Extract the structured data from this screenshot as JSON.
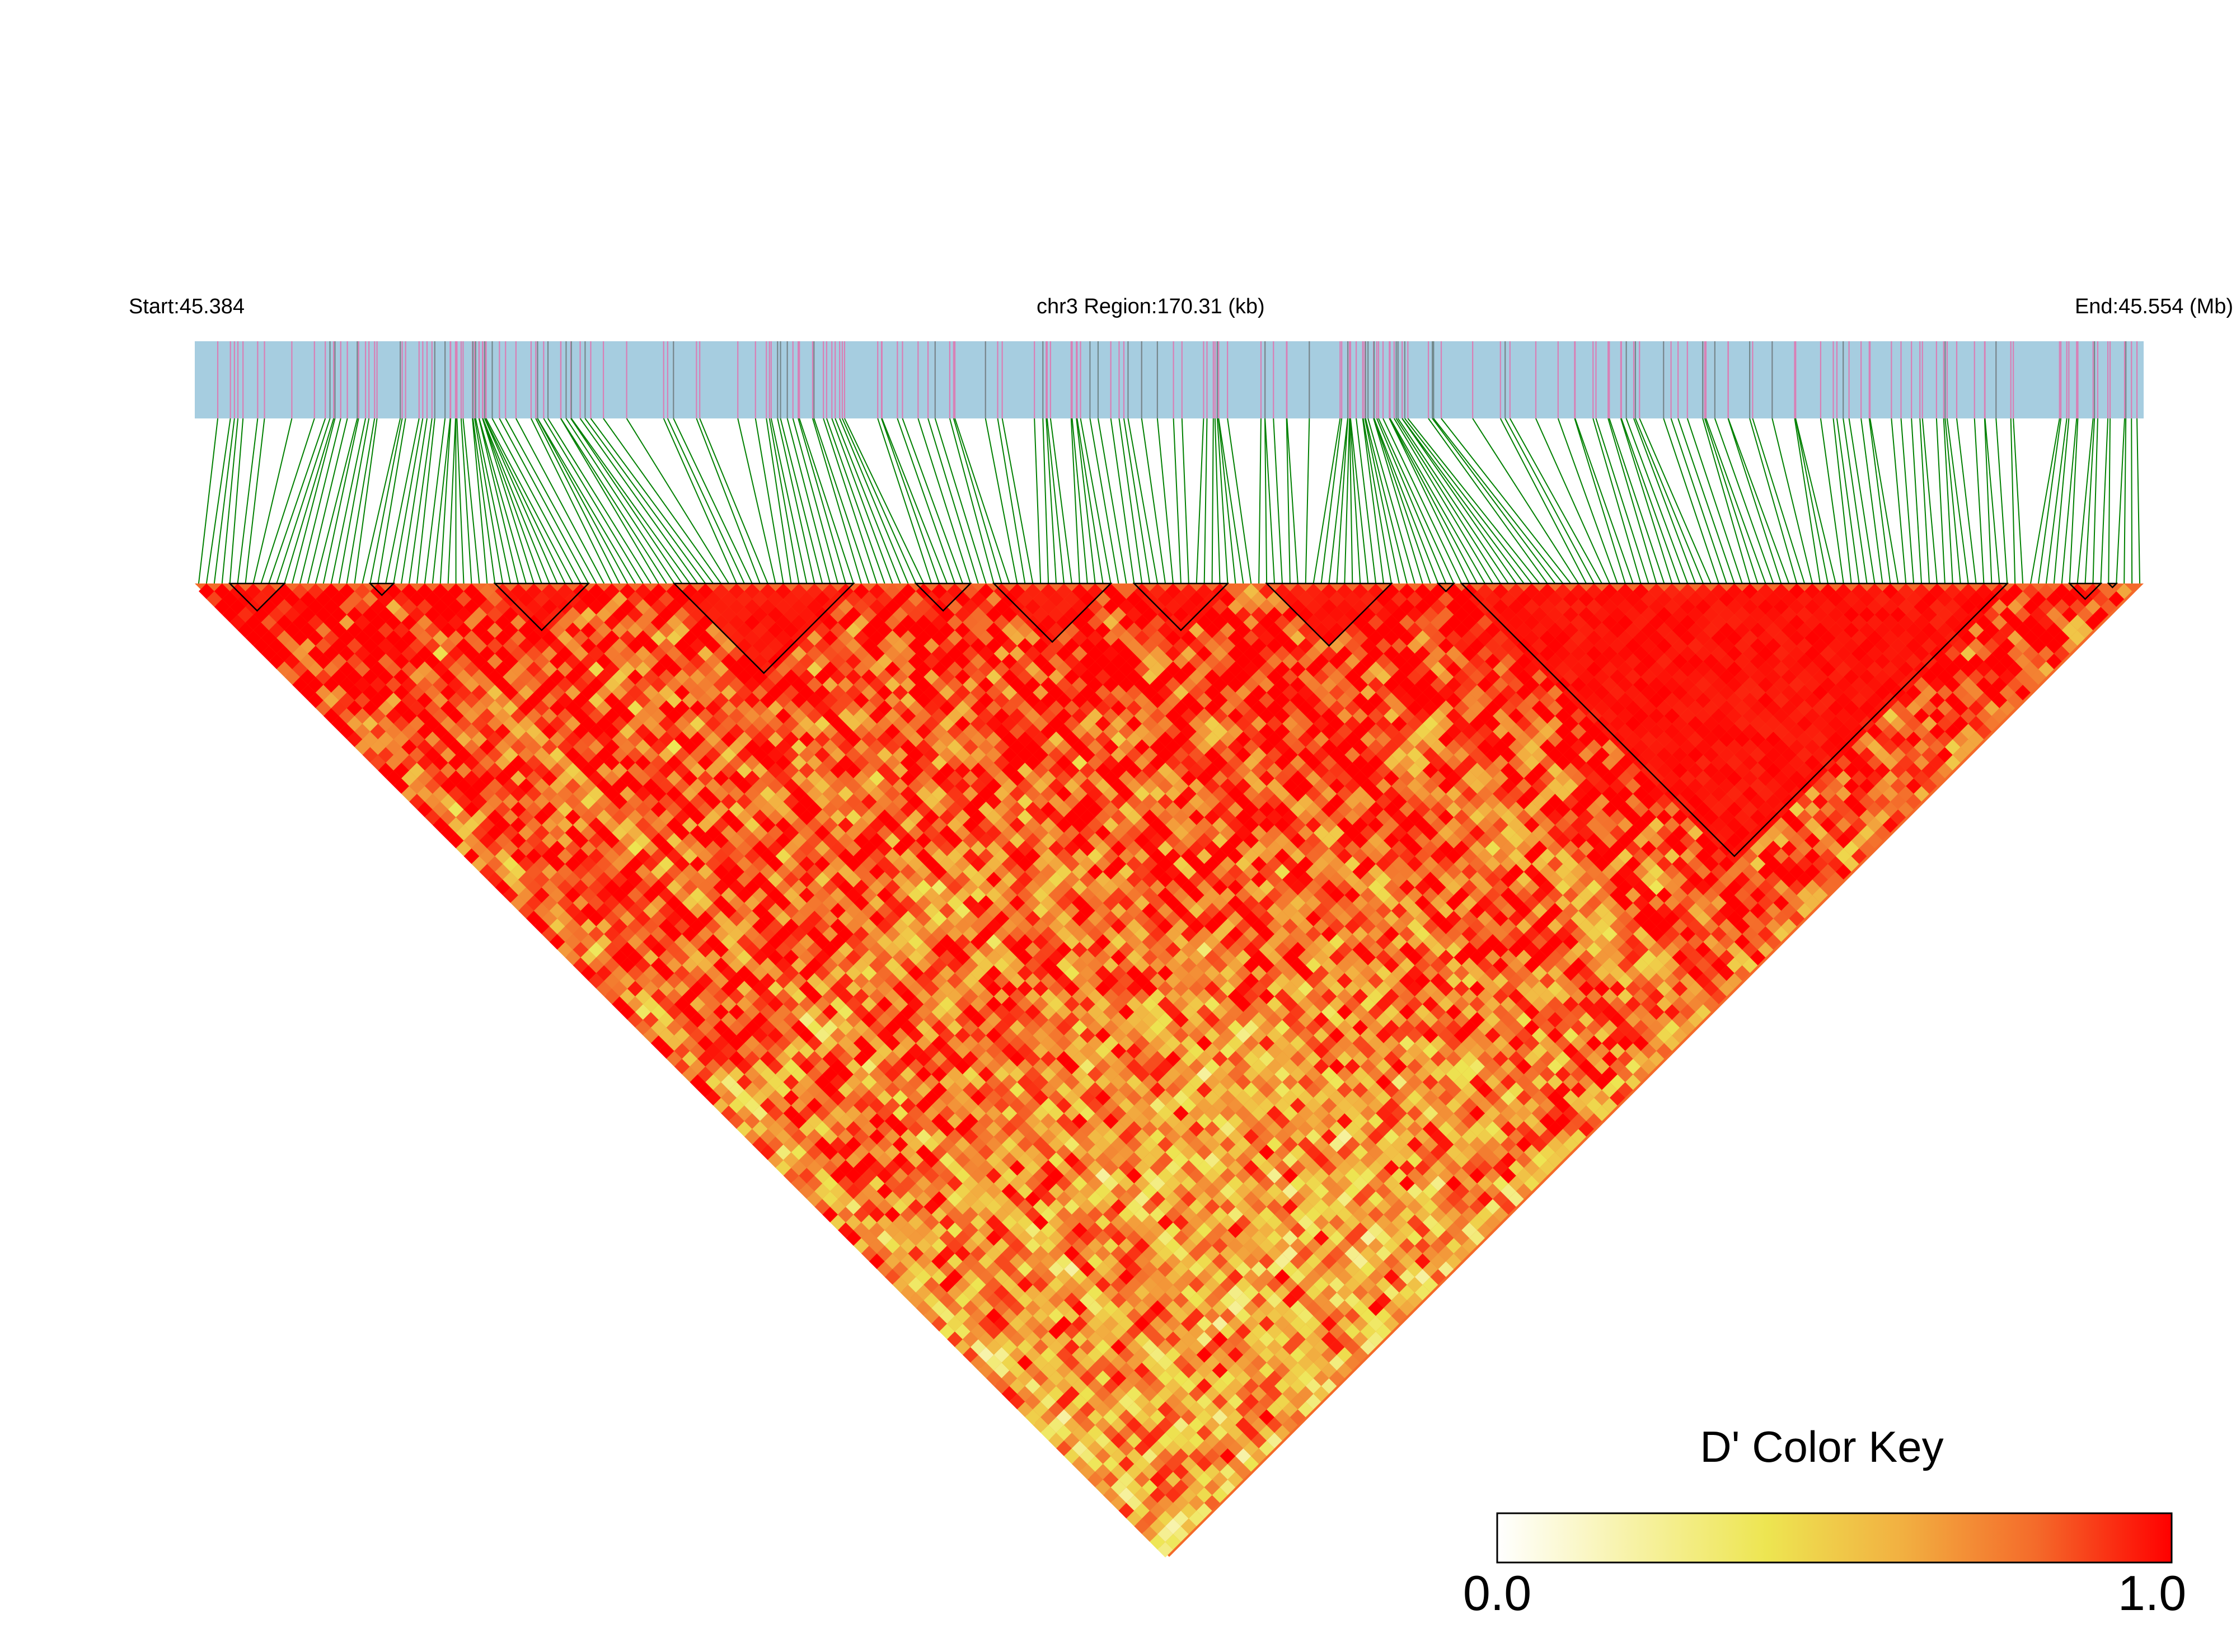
{
  "chart_data": {
    "type": "heatmap",
    "subtype": "linkage-disequilibrium-triangle",
    "chromosome": "chr3",
    "header": {
      "start_label": "Start:45.384",
      "region_label": "chr3 Region:170.31 (kb)",
      "end_label": "End:45.554 (Mb)"
    },
    "region": {
      "start_mb": 45.384,
      "end_mb": 45.554,
      "length_kb": 170.31
    },
    "metric": "D'",
    "snp_count_approx": 250,
    "track_colors": {
      "background": "#a6cde0",
      "snp_mark": "#d97fb5",
      "dense_mark": "#6d8a8a",
      "connector": "#008000"
    },
    "snp_density_profile": [
      {
        "from_mb": 45.384,
        "to_mb": 45.402,
        "density": "moderate"
      },
      {
        "from_mb": 45.402,
        "to_mb": 45.419,
        "density": "high"
      },
      {
        "from_mb": 45.419,
        "to_mb": 45.45,
        "density": "moderate"
      },
      {
        "from_mb": 45.45,
        "to_mb": 45.484,
        "density": "moderate"
      },
      {
        "from_mb": 45.484,
        "to_mb": 45.49,
        "density": "very high"
      },
      {
        "from_mb": 45.49,
        "to_mb": 45.554,
        "density": "moderate"
      }
    ],
    "ld_blocks": [
      {
        "snp_start": 4,
        "snp_end": 11
      },
      {
        "snp_start": 22,
        "snp_end": 25
      },
      {
        "snp_start": 38,
        "snp_end": 50
      },
      {
        "snp_start": 61,
        "snp_end": 84
      },
      {
        "snp_start": 92,
        "snp_end": 99
      },
      {
        "snp_start": 102,
        "snp_end": 117
      },
      {
        "snp_start": 120,
        "snp_end": 132
      },
      {
        "snp_start": 137,
        "snp_end": 153
      },
      {
        "snp_start": 159,
        "snp_end": 161
      },
      {
        "snp_start": 162,
        "snp_end": 232
      },
      {
        "snp_start": 240,
        "snp_end": 244
      },
      {
        "snp_start": 245,
        "snp_end": 246
      }
    ],
    "colorscale": {
      "title": "D' Color Key",
      "min_label": "0.0",
      "max_label": "1.0",
      "min": 0.0,
      "max": 1.0,
      "stops": [
        "#ffffff",
        "#f7f2a6",
        "#ede551",
        "#f2b041",
        "#f46a2a",
        "#ff0000"
      ]
    }
  }
}
